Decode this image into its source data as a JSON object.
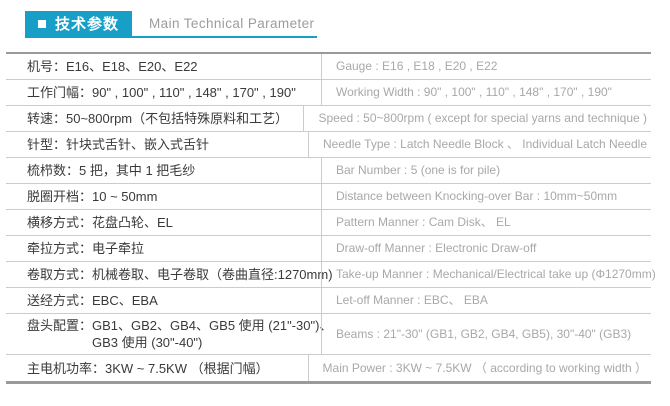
{
  "header": {
    "bullet_icon": "square-bullet",
    "badge_label": "技术参数",
    "title": "Main Technical Parameter"
  },
  "colors": {
    "accent": "#189fc8",
    "border_heavy": "#9a9a9a",
    "border_light": "#cccccc",
    "text_zh": "#3a3a3a",
    "text_en": "#a8a8a8"
  },
  "table": {
    "rows": [
      {
        "zh": "机号：E16、E18、E20、E22",
        "en": "Gauge : E16 , E18 , E20 , E22"
      },
      {
        "zh": "工作门幅：90\" , 100\" , 110\" , 148\" , 170\" , 190\"",
        "en": "Working Width : 90\" , 100\" , 110\" , 148\" , 170\" , 190\""
      },
      {
        "zh": "转速：50~800rpm（不包括特殊原料和工艺）",
        "en": "Speed : 50~800rpm ( except for special yarns and technique )"
      },
      {
        "zh": "针型：针块式舌针、嵌入式舌针",
        "en": "Needle Type : Latch Needle Block 、 Individual Latch Needle"
      },
      {
        "zh": "梳栉数：5 把，其中 1 把毛纱",
        "en": "Bar Number : 5 (one is for pile)"
      },
      {
        "zh": "脱圈开档：10 ~ 50mm",
        "en": "Distance between Knocking-over Bar : 10mm~50mm"
      },
      {
        "zh": "横移方式：花盘凸轮、EL",
        "en": "Pattern Manner : Cam Disk、 EL"
      },
      {
        "zh": "牵拉方式：电子牵拉",
        "en": "Draw-off Manner : Electronic Draw-off"
      },
      {
        "zh": "卷取方式：机械卷取、电子卷取（卷曲直径:1270mm)",
        "en": "Take-up Manner :  Mechanical/Electrical take up (Φ1270mm)"
      },
      {
        "zh": "送经方式：EBC、EBA",
        "en": "Let-off Manner : EBC、 EBA"
      },
      {
        "zh": "盘头配置：GB1、GB2、GB4、GB5 使用 (21\"-30\")、",
        "zh2": "GB3 使用 (30\"-40\")",
        "en": "Beams : 21\"-30\" (GB1, GB2, GB4, GB5),  30\"-40\" (GB3)"
      },
      {
        "zh": "主电机功率：3KW ~ 7.5KW （根据门幅）",
        "en": "Main Power : 3KW ~ 7.5KW （ according to working width ）"
      }
    ]
  }
}
